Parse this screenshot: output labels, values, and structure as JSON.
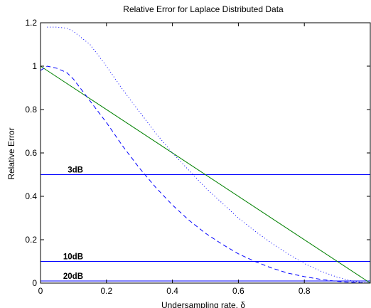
{
  "chart_data": {
    "type": "line",
    "title": "Relative Error for Laplace Distributed Data",
    "xlabel": "Undersampling rate, δ",
    "ylabel": "Relative Error",
    "xlim": [
      0,
      1
    ],
    "ylim": [
      0,
      1.2
    ],
    "xticks": [
      0,
      0.2,
      0.4,
      0.6,
      0.8
    ],
    "xtick_labels": [
      "0",
      "0.2",
      "0.4",
      "0.6",
      "0.8"
    ],
    "yticks": [
      0,
      0.2,
      0.4,
      0.6,
      0.8,
      1,
      1.2
    ],
    "ytick_labels": [
      "0",
      "0.2",
      "0.4",
      "0.6",
      "0.8",
      "1",
      "1.2"
    ],
    "grid": false,
    "series": [
      {
        "style": "solid",
        "color": "#008000",
        "x": [
          0,
          1
        ],
        "y": [
          1,
          0
        ]
      },
      {
        "style": "dashed",
        "color": "#0000ff",
        "x": [
          0,
          0.02,
          0.05,
          0.08,
          0.1,
          0.12,
          0.15,
          0.2,
          0.25,
          0.3,
          0.35,
          0.4,
          0.45,
          0.5,
          0.55,
          0.6,
          0.65,
          0.7,
          0.75,
          0.8,
          0.85,
          0.9,
          0.95,
          1
        ],
        "y": [
          0.98,
          1.0,
          0.99,
          0.97,
          0.94,
          0.9,
          0.84,
          0.74,
          0.63,
          0.53,
          0.44,
          0.36,
          0.29,
          0.23,
          0.18,
          0.135,
          0.1,
          0.07,
          0.046,
          0.03,
          0.017,
          0.008,
          0.003,
          0.0
        ]
      },
      {
        "style": "dotted",
        "color": "#0000ff",
        "x": [
          0.02,
          0.05,
          0.08,
          0.1,
          0.15,
          0.2,
          0.25,
          0.3,
          0.35,
          0.4,
          0.45,
          0.5,
          0.55,
          0.6,
          0.65,
          0.7,
          0.75,
          0.8,
          0.85,
          0.9,
          0.95,
          1
        ],
        "y": [
          1.18,
          1.18,
          1.175,
          1.16,
          1.1,
          1.0,
          0.89,
          0.79,
          0.69,
          0.6,
          0.52,
          0.44,
          0.37,
          0.3,
          0.24,
          0.185,
          0.135,
          0.09,
          0.055,
          0.027,
          0.008,
          0.0
        ]
      }
    ],
    "reference_lines": [
      {
        "label": "3dB",
        "y": 0.5,
        "color": "#0000ff"
      },
      {
        "label": "10dB",
        "y": 0.1,
        "color": "#0000ff"
      },
      {
        "label": "20dB",
        "y": 0.01,
        "color": "#0000ff"
      }
    ]
  }
}
